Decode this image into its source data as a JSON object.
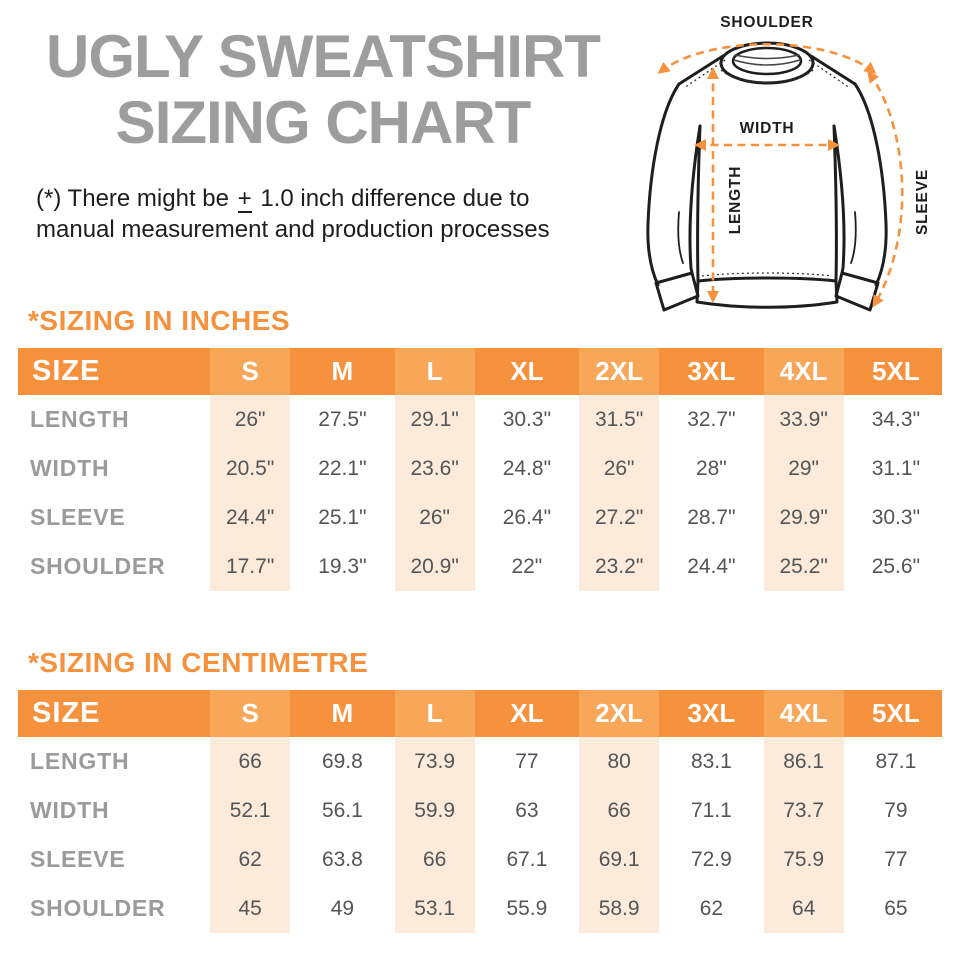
{
  "colors": {
    "orange": "#F6913D",
    "header_orange_light": "#F8A658",
    "stripe_peach": "#FCEBDB",
    "title_gray": "#9D9D9D",
    "label_gray": "#9B9B9B",
    "value_gray": "#545556",
    "ink": "#1E1E1C"
  },
  "header": {
    "title_line1": "UGLY SWEATSHIRT",
    "title_line2": "SIZING CHART",
    "note_prefix": "(*) There might be ",
    "note_plusminus": "+",
    "note_suffix": " 1.0 inch difference due to",
    "note_line2": "manual measurement and production processes"
  },
  "diagram": {
    "shoulder_label": "SHOULDER",
    "width_label": "WIDTH",
    "length_label": "LENGTH",
    "sleeve_label": "SLEEVE"
  },
  "inches_table": {
    "heading": "*SIZING IN INCHES",
    "corner_header": "SIZE",
    "size_columns": [
      "S",
      "M",
      "L",
      "XL",
      "2XL",
      "3XL",
      "4XL",
      "5XL"
    ],
    "rows": [
      {
        "label": "LENGTH",
        "values": [
          "26\"",
          "27.5\"",
          "29.1\"",
          "30.3\"",
          "31.5\"",
          "32.7\"",
          "33.9\"",
          "34.3\""
        ]
      },
      {
        "label": "WIDTH",
        "values": [
          "20.5\"",
          "22.1\"",
          "23.6\"",
          "24.8\"",
          "26\"",
          "28\"",
          "29\"",
          "31.1\""
        ]
      },
      {
        "label": "SLEEVE",
        "values": [
          "24.4\"",
          "25.1\"",
          "26\"",
          "26.4\"",
          "27.2\"",
          "28.7\"",
          "29.9\"",
          "30.3\""
        ]
      },
      {
        "label": "SHOULDER",
        "values": [
          "17.7\"",
          "19.3\"",
          "20.9\"",
          "22\"",
          "23.2\"",
          "24.4\"",
          "25.2\"",
          "25.6\""
        ]
      }
    ]
  },
  "cm_table": {
    "heading": "*SIZING IN CENTIMETRE",
    "corner_header": "SIZE",
    "size_columns": [
      "S",
      "M",
      "L",
      "XL",
      "2XL",
      "3XL",
      "4XL",
      "5XL"
    ],
    "rows": [
      {
        "label": "LENGTH",
        "values": [
          "66",
          "69.8",
          "73.9",
          "77",
          "80",
          "83.1",
          "86.1",
          "87.1"
        ]
      },
      {
        "label": "WIDTH",
        "values": [
          "52.1",
          "56.1",
          "59.9",
          "63",
          "66",
          "71.1",
          "73.7",
          "79"
        ]
      },
      {
        "label": "SLEEVE",
        "values": [
          "62",
          "63.8",
          "66",
          "67.1",
          "69.1",
          "72.9",
          "75.9",
          "77"
        ]
      },
      {
        "label": "SHOULDER",
        "values": [
          "45",
          "49",
          "53.1",
          "55.9",
          "58.9",
          "62",
          "64",
          "65"
        ]
      }
    ]
  },
  "chart_data": [
    {
      "type": "table",
      "title": "*SIZING IN INCHES",
      "columns": [
        "SIZE",
        "S",
        "M",
        "L",
        "XL",
        "2XL",
        "3XL",
        "4XL",
        "5XL"
      ],
      "rows": [
        [
          "LENGTH",
          "26\"",
          "27.5\"",
          "29.1\"",
          "30.3\"",
          "31.5\"",
          "32.7\"",
          "33.9\"",
          "34.3\""
        ],
        [
          "WIDTH",
          "20.5\"",
          "22.1\"",
          "23.6\"",
          "24.8\"",
          "26\"",
          "28\"",
          "29\"",
          "31.1\""
        ],
        [
          "SLEEVE",
          "24.4\"",
          "25.1\"",
          "26\"",
          "26.4\"",
          "27.2\"",
          "28.7\"",
          "29.9\"",
          "30.3\""
        ],
        [
          "SHOULDER",
          "17.7\"",
          "19.3\"",
          "20.9\"",
          "22\"",
          "23.2\"",
          "24.4\"",
          "25.2\"",
          "25.6\""
        ]
      ]
    },
    {
      "type": "table",
      "title": "*SIZING IN CENTIMETRE",
      "columns": [
        "SIZE",
        "S",
        "M",
        "L",
        "XL",
        "2XL",
        "3XL",
        "4XL",
        "5XL"
      ],
      "rows": [
        [
          "LENGTH",
          "66",
          "69.8",
          "73.9",
          "77",
          "80",
          "83.1",
          "86.1",
          "87.1"
        ],
        [
          "WIDTH",
          "52.1",
          "56.1",
          "59.9",
          "63",
          "66",
          "71.1",
          "73.7",
          "79"
        ],
        [
          "SLEEVE",
          "62",
          "63.8",
          "66",
          "67.1",
          "69.1",
          "72.9",
          "75.9",
          "77"
        ],
        [
          "SHOULDER",
          "45",
          "49",
          "53.1",
          "55.9",
          "58.9",
          "62",
          "64",
          "65"
        ]
      ]
    }
  ]
}
